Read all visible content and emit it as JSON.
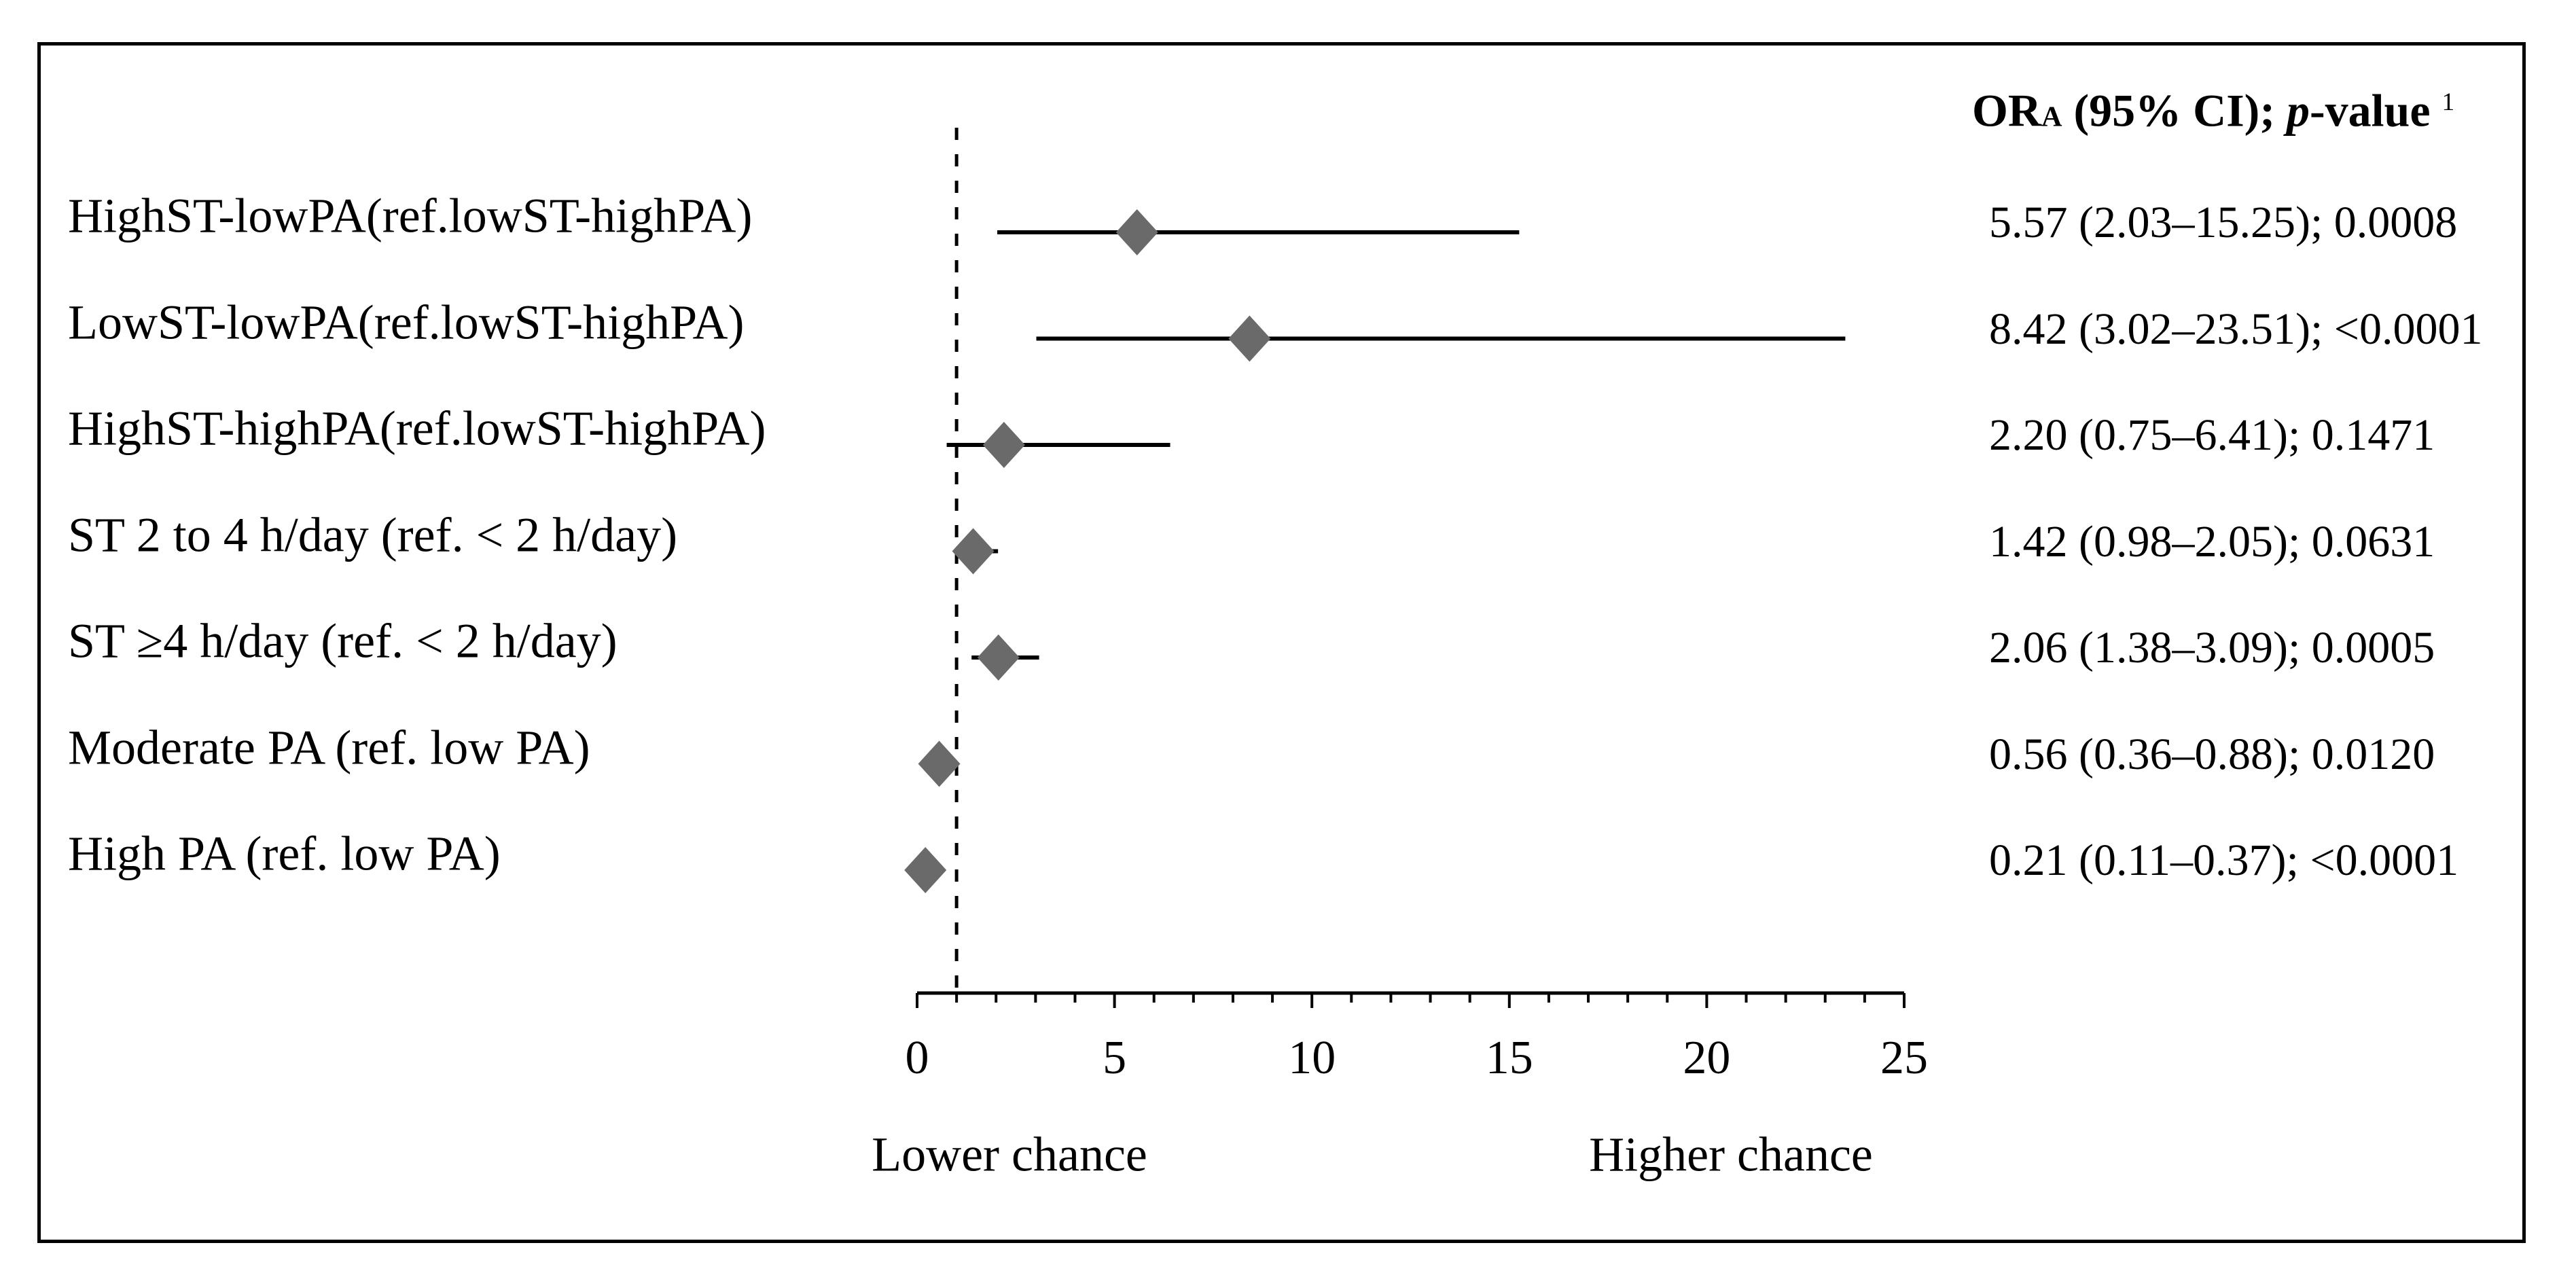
{
  "figure": {
    "header": {
      "or": "OR",
      "or_subscript": "A",
      "ci_part": " (95% CI); ",
      "p_italic": "p",
      "value_part": "-value ",
      "footnote_superscript": "1"
    },
    "annotations": {
      "left": "Lower chance",
      "right": "Higher chance"
    },
    "colors": {
      "diamond": "#6a6a6a",
      "line": "#000000",
      "border": "#000000",
      "background": "#ffffff",
      "text": "#000000"
    }
  },
  "chart_data": {
    "type": "forest",
    "title": "ORA (95% CI); p-value 1",
    "xlim": [
      0,
      25
    ],
    "x_major_ticks": [
      0,
      5,
      10,
      15,
      20,
      25
    ],
    "x_minor_tick_step": 1,
    "reference_line_x": 1,
    "grid": false,
    "xlabel_left": "Lower chance",
    "xlabel_right": "Higher chance",
    "rows": [
      {
        "label": "HighST-lowPA(ref.lowST-highPA)",
        "or": 5.57,
        "ci_low": 2.03,
        "ci_high": 15.25,
        "p_value": "0.0008",
        "display": "5.57 (2.03–15.25); 0.0008"
      },
      {
        "label": "LowST-lowPA(ref.lowST-highPA)",
        "or": 8.42,
        "ci_low": 3.02,
        "ci_high": 23.51,
        "p_value": "<0.0001",
        "display": "8.42 (3.02–23.51); <0.0001"
      },
      {
        "label": "HighST-highPA(ref.lowST-highPA)",
        "or": 2.2,
        "ci_low": 0.75,
        "ci_high": 6.41,
        "p_value": "0.1471",
        "display": "2.20 (0.75–6.41); 0.1471"
      },
      {
        "label": "ST 2 to 4 h/day (ref. < 2 h/day)",
        "or": 1.42,
        "ci_low": 0.98,
        "ci_high": 2.05,
        "p_value": "0.0631",
        "display": "1.42 (0.98–2.05); 0.0631"
      },
      {
        "label": "ST ≥4 h/day (ref. < 2 h/day)",
        "or": 2.06,
        "ci_low": 1.38,
        "ci_high": 3.09,
        "p_value": "0.0005",
        "display": "2.06 (1.38–3.09); 0.0005"
      },
      {
        "label": "Moderate PA (ref. low PA)",
        "or": 0.56,
        "ci_low": 0.36,
        "ci_high": 0.88,
        "p_value": "0.0120",
        "display": "0.56 (0.36–0.88); 0.0120"
      },
      {
        "label": "High PA (ref. low PA)",
        "or": 0.21,
        "ci_low": 0.11,
        "ci_high": 0.37,
        "p_value": "<0.0001",
        "display": "0.21 (0.11–0.37); <0.0001"
      }
    ]
  }
}
